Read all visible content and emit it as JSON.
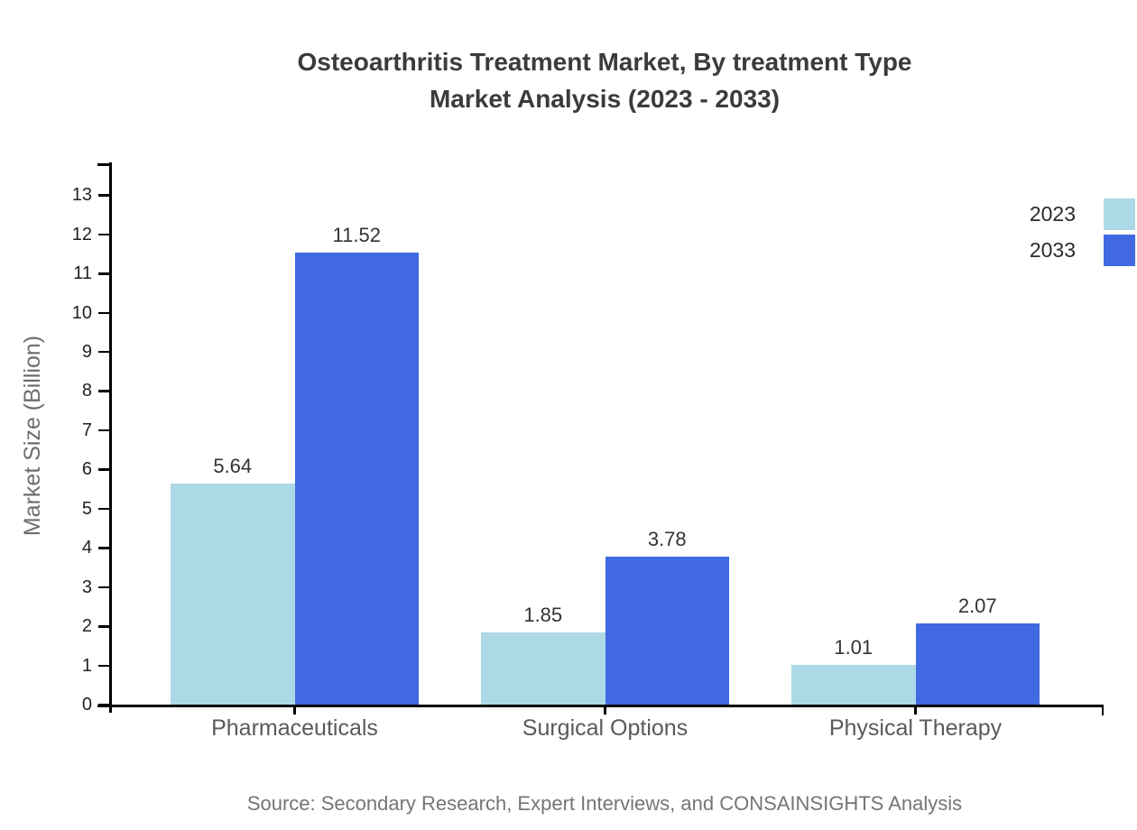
{
  "title": {
    "line1": "Osteoarthritis Treatment Market, By treatment Type",
    "line2": "Market Analysis (2023 - 2033)"
  },
  "chart_data": {
    "type": "bar",
    "categories": [
      "Pharmaceuticals",
      "Surgical Options",
      "Physical Therapy"
    ],
    "series": [
      {
        "name": "2023",
        "color": "#ADD8E6",
        "values": [
          5.64,
          1.85,
          1.01
        ]
      },
      {
        "name": "2033",
        "color": "#4169E1",
        "values": [
          11.52,
          3.78,
          2.07
        ]
      }
    ],
    "xlabel": "",
    "ylabel": "Market Size (Billion)",
    "y_ticks": [
      0,
      1,
      2,
      3,
      4,
      5,
      6,
      7,
      8,
      9,
      10,
      11,
      12,
      13
    ],
    "ylim": [
      0,
      13.8
    ],
    "grid": false,
    "value_labels": true,
    "legend_position": "top-right"
  },
  "source": "Source: Secondary Research, Expert Interviews, and CONSAINSIGHTS Analysis",
  "colors": {
    "axis": "#000000",
    "title_text": "#3b3b3b",
    "tick_text": "#222222",
    "category_text": "#5a5a5a",
    "value_text": "#333333",
    "ylabel_text": "#6e6e6e",
    "source_text": "#757575",
    "background": "#ffffff"
  }
}
